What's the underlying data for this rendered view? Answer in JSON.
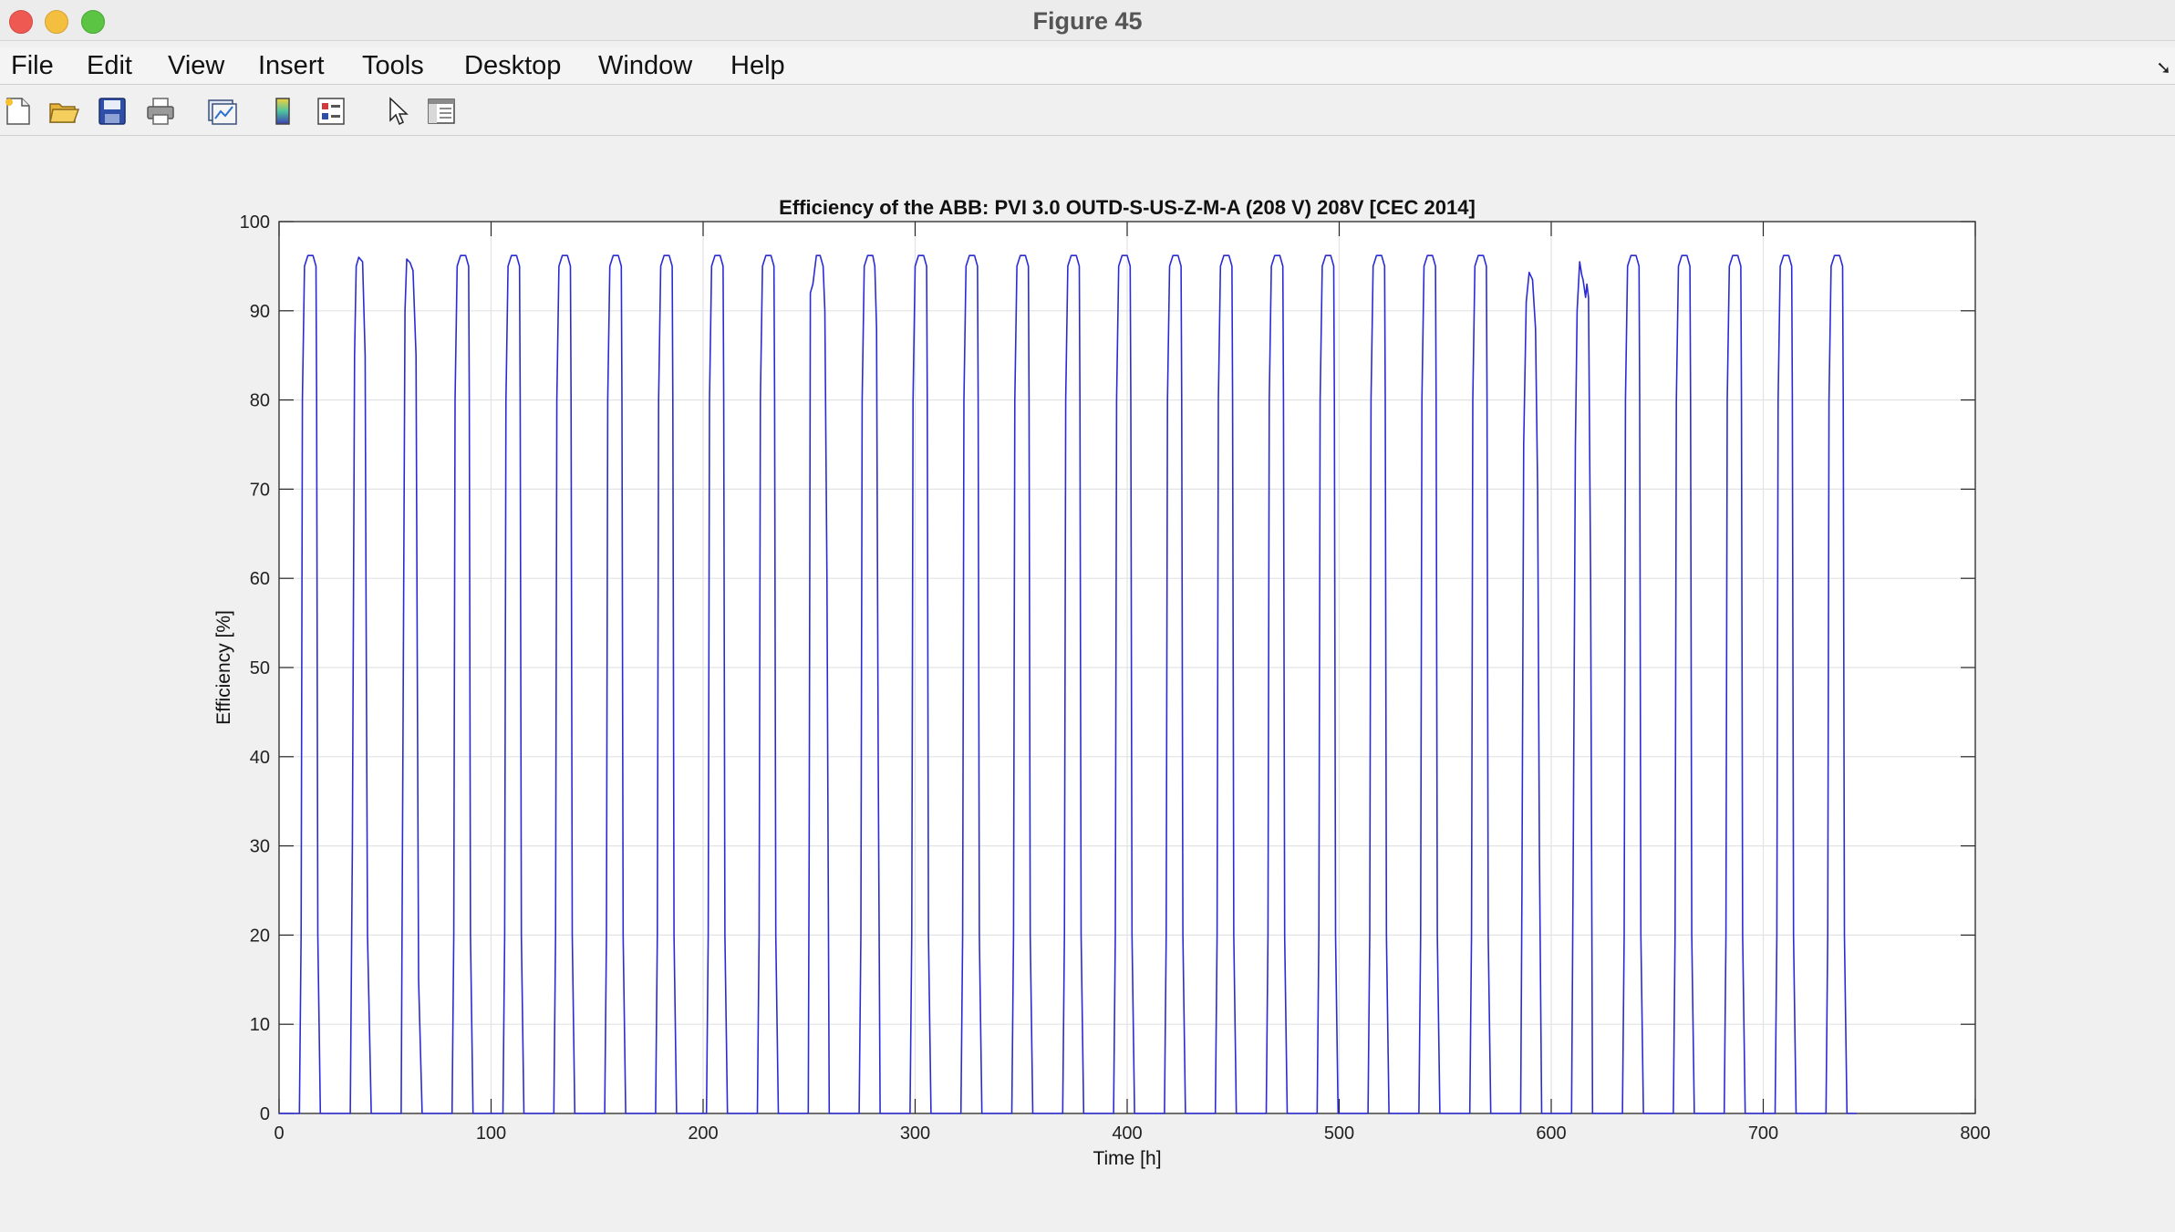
{
  "window": {
    "title": "Figure 45"
  },
  "menu": {
    "items": [
      "File",
      "Edit",
      "View",
      "Insert",
      "Tools",
      "Desktop",
      "Window",
      "Help"
    ]
  },
  "toolbar": {
    "icons": [
      "new-figure-icon",
      "open-file-icon",
      "save-icon",
      "print-icon",
      "link-plot-icon",
      "insert-colorbar-icon",
      "insert-legend-icon",
      "edit-plot-arrow-icon",
      "property-inspector-icon"
    ]
  },
  "colors": {
    "series": "#2b2bd6",
    "grid": "#e3e3e3"
  },
  "chart_data": {
    "type": "line",
    "title": "Efficiency of the ABB: PVI 3.0 OUTD-S-US-Z-M-A (208 V) 208V [CEC 2014]",
    "xlabel": "Time [h]",
    "ylabel": "Efficiency [%]",
    "xlim": [
      0,
      800
    ],
    "ylim": [
      0,
      100
    ],
    "xticks": [
      0,
      100,
      200,
      300,
      400,
      500,
      600,
      700,
      800
    ],
    "yticks": [
      0,
      10,
      20,
      30,
      40,
      50,
      60,
      70,
      80,
      90,
      100
    ],
    "grid": true,
    "legend": "none",
    "series": [
      {
        "x": [
          0,
          9.6,
          10.4,
          11.0,
          12.0,
          13.6,
          16.0,
          17.4,
          17.7,
          18.3,
          19.5,
          33.6,
          34.6,
          35.6,
          36.4,
          37.6,
          39.4,
          40.6,
          41.0,
          41.7,
          43.5,
          57.6,
          58.4,
          59.4,
          60.2,
          61.8,
          63.2,
          64.6,
          65.2,
          65.8,
          67.5,
          81.6,
          82.4,
          83.0,
          84.0,
          85.6,
          88.0,
          89.4,
          89.7,
          90.3,
          91.5,
          105.6,
          106.4,
          107.0,
          108.0,
          109.6,
          112.0,
          113.4,
          113.7,
          114.3,
          115.5,
          129.6,
          130.4,
          131.0,
          132.0,
          133.6,
          136.0,
          137.4,
          137.7,
          138.3,
          139.5,
          153.6,
          154.4,
          155.0,
          156.0,
          157.6,
          160.0,
          161.4,
          161.7,
          162.3,
          163.5,
          177.6,
          178.4,
          179.0,
          180.0,
          181.6,
          184.0,
          185.4,
          185.7,
          186.3,
          187.5,
          201.6,
          202.4,
          203.0,
          204.0,
          205.6,
          208.0,
          209.4,
          209.7,
          210.3,
          211.5,
          225.6,
          226.4,
          227.0,
          228.0,
          229.6,
          232.0,
          233.4,
          233.7,
          234.3,
          235.5,
          249.6,
          250.0,
          250.6,
          251.8,
          253.4,
          255.2,
          256.6,
          257.4,
          258.4,
          259.5,
          273.6,
          274.4,
          275.0,
          276.0,
          277.6,
          280.0,
          281.0,
          281.8,
          282.6,
          283.5,
          297.6,
          298.4,
          299.0,
          300.0,
          301.6,
          304.0,
          305.4,
          305.7,
          306.3,
          307.5,
          321.6,
          322.4,
          323.0,
          324.0,
          325.6,
          328.0,
          329.4,
          329.7,
          330.3,
          331.5,
          345.6,
          346.4,
          347.0,
          348.0,
          349.6,
          352.0,
          353.4,
          353.7,
          354.3,
          355.5,
          369.6,
          370.4,
          371.0,
          372.0,
          373.6,
          376.0,
          377.4,
          377.7,
          378.3,
          379.5,
          393.6,
          394.4,
          395.0,
          396.0,
          397.6,
          400.0,
          401.4,
          401.7,
          402.3,
          403.5,
          417.6,
          418.4,
          419.0,
          420.0,
          421.6,
          424.0,
          425.4,
          425.7,
          426.3,
          427.5,
          441.6,
          442.4,
          443.0,
          444.0,
          445.6,
          448.0,
          449.4,
          449.7,
          450.3,
          451.5,
          465.6,
          466.4,
          467.0,
          468.0,
          469.6,
          472.0,
          473.4,
          473.7,
          474.3,
          475.5,
          489.6,
          490.4,
          491.0,
          492.0,
          493.6,
          496.0,
          497.4,
          497.7,
          498.3,
          499.5,
          513.6,
          514.4,
          515.0,
          516.0,
          517.6,
          520.0,
          521.4,
          521.7,
          522.3,
          523.5,
          537.6,
          538.4,
          539.0,
          540.0,
          541.6,
          544.0,
          545.4,
          545.7,
          546.3,
          547.5,
          561.6,
          562.4,
          563.0,
          564.0,
          565.6,
          568.0,
          569.4,
          569.7,
          570.3,
          571.5,
          585.6,
          586.2,
          587.0,
          588.2,
          589.6,
          591.2,
          592.6,
          593.6,
          594.4,
          595.5,
          609.6,
          610.4,
          611.4,
          612.2,
          613.4,
          614.4,
          615.0,
          616.2,
          616.8,
          617.6,
          618.6,
          619.5,
          633.6,
          634.4,
          635.0,
          636.0,
          637.6,
          640.0,
          641.4,
          641.7,
          642.3,
          643.5,
          657.6,
          658.4,
          659.0,
          660.0,
          661.6,
          664.0,
          665.4,
          665.7,
          666.3,
          667.5,
          681.6,
          682.4,
          683.0,
          684.0,
          685.6,
          688.0,
          689.4,
          689.7,
          690.3,
          691.5,
          705.6,
          706.4,
          707.0,
          708.0,
          709.6,
          712.0,
          713.4,
          713.7,
          714.3,
          715.5,
          729.6,
          730.4,
          731.0,
          732.0,
          733.6,
          736.0,
          737.4,
          737.7,
          738.3,
          739.5,
          744
        ],
        "y": [
          0,
          0,
          20,
          80,
          95,
          96.2,
          96.2,
          95,
          80,
          20,
          0,
          0,
          30,
          85,
          95,
          96.0,
          95.5,
          85,
          60,
          20,
          0,
          0,
          40,
          90,
          95.8,
          95.4,
          94.5,
          85,
          50,
          15,
          0,
          0,
          20,
          80,
          95,
          96.2,
          96.2,
          95,
          80,
          20,
          0,
          0,
          20,
          80,
          95,
          96.2,
          96.2,
          95,
          80,
          20,
          0,
          0,
          20,
          80,
          95,
          96.2,
          96.2,
          95,
          80,
          20,
          0,
          0,
          20,
          80,
          95,
          96.2,
          96.2,
          95,
          80,
          20,
          0,
          0,
          20,
          80,
          95,
          96.2,
          96.2,
          95,
          80,
          20,
          0,
          0,
          20,
          80,
          95,
          96.2,
          96.2,
          95,
          80,
          20,
          0,
          0,
          20,
          80,
          95,
          96.2,
          96.2,
          95,
          80,
          20,
          0,
          0,
          30,
          92,
          93,
          96.2,
          96.2,
          95,
          90,
          60,
          0,
          0,
          20,
          80,
          95,
          96.2,
          96.2,
          95,
          88,
          40,
          0,
          0,
          20,
          80,
          95,
          96.2,
          96.2,
          95,
          80,
          20,
          0,
          0,
          20,
          80,
          95,
          96.2,
          96.2,
          95,
          80,
          20,
          0,
          0,
          20,
          80,
          95,
          96.2,
          96.2,
          95,
          80,
          20,
          0,
          0,
          20,
          80,
          95,
          96.2,
          96.2,
          95,
          80,
          20,
          0,
          0,
          20,
          80,
          95,
          96.2,
          96.2,
          95,
          80,
          20,
          0,
          0,
          20,
          80,
          95,
          96.2,
          96.2,
          95,
          80,
          20,
          0,
          0,
          20,
          80,
          95,
          96.2,
          96.2,
          95,
          80,
          20,
          0,
          0,
          20,
          80,
          95,
          96.2,
          96.2,
          95,
          80,
          20,
          0,
          0,
          20,
          80,
          95,
          96.2,
          96.2,
          95,
          80,
          20,
          0,
          0,
          20,
          80,
          95,
          96.2,
          96.2,
          95,
          80,
          20,
          0,
          0,
          20,
          80,
          95,
          96.2,
          96.2,
          95,
          80,
          20,
          0,
          0,
          20,
          80,
          95,
          96.2,
          96.2,
          95,
          80,
          20,
          0,
          0,
          25,
          75,
          91,
          94.3,
          93.5,
          88,
          70,
          30,
          0,
          0,
          30,
          75,
          90,
          95.5,
          94,
          93.5,
          91.5,
          93,
          91.5,
          60,
          0,
          0,
          20,
          80,
          95,
          96.2,
          96.2,
          95,
          80,
          20,
          0,
          0,
          20,
          80,
          95,
          96.2,
          96.2,
          95,
          80,
          20,
          0,
          0,
          20,
          80,
          95,
          96.2,
          96.2,
          95,
          80,
          20,
          0,
          0,
          20,
          80,
          95,
          96.2,
          96.2,
          95,
          80,
          20,
          0,
          0,
          20,
          80,
          95,
          96.2,
          96.2,
          95,
          80,
          20,
          0,
          0
        ]
      }
    ]
  }
}
